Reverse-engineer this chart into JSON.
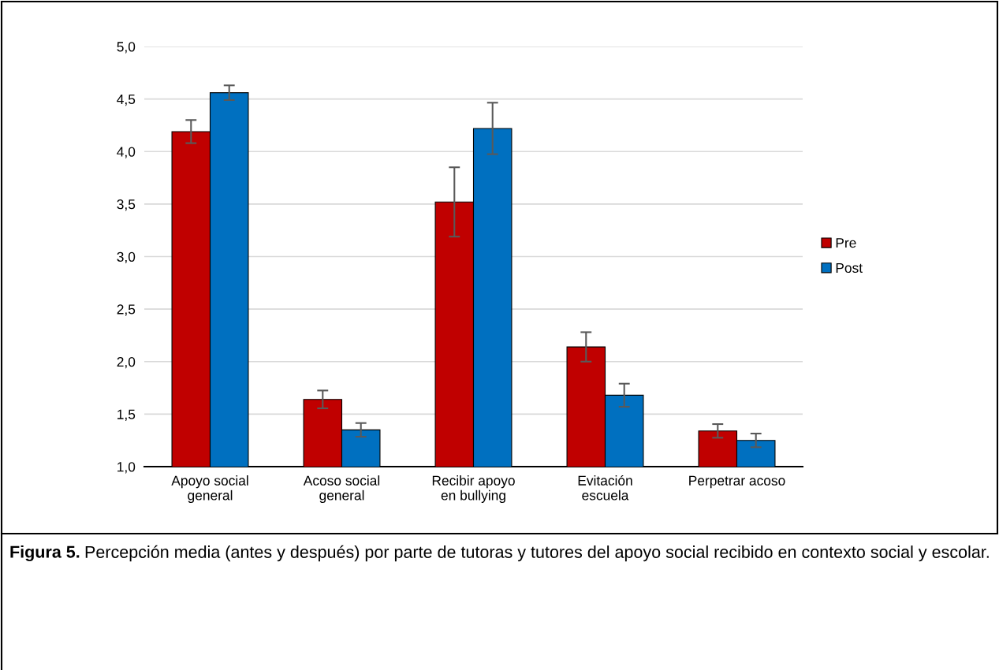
{
  "chart_data": {
    "type": "bar",
    "categories": [
      "Apoyo social\ngeneral",
      "Acoso social\ngeneral",
      "Recibir apoyo\nen bullying",
      "Evitación\nescuela",
      "Perpetrar acoso"
    ],
    "series": [
      {
        "name": "Pre",
        "color": "#c00000",
        "values": [
          4.19,
          1.64,
          3.52,
          2.14,
          1.34
        ],
        "errors": [
          0.11,
          0.085,
          0.33,
          0.14,
          0.065
        ]
      },
      {
        "name": "Post",
        "color": "#0070c0",
        "values": [
          4.56,
          1.35,
          4.22,
          1.68,
          1.25
        ],
        "errors": [
          0.07,
          0.065,
          0.245,
          0.11,
          0.065
        ]
      }
    ],
    "ylim": [
      1,
      5
    ],
    "yticks": [
      {
        "value": 1,
        "label": "1,0"
      },
      {
        "value": 1.5,
        "label": "1,5"
      },
      {
        "value": 2,
        "label": "2,0"
      },
      {
        "value": 2.5,
        "label": "2,5"
      },
      {
        "value": 3,
        "label": "3,0"
      },
      {
        "value": 3.5,
        "label": "3,5"
      },
      {
        "value": 4,
        "label": "4,0"
      },
      {
        "value": 4.5,
        "label": "4,5"
      },
      {
        "value": 5,
        "label": "5,0"
      }
    ],
    "grid": "y",
    "legend": "right",
    "annotations": [
      "Figura 5.",
      "Percepción media (antes y después) por parte de tutoras y tutores del apoyo social recibido en contexto social y escolar."
    ]
  }
}
